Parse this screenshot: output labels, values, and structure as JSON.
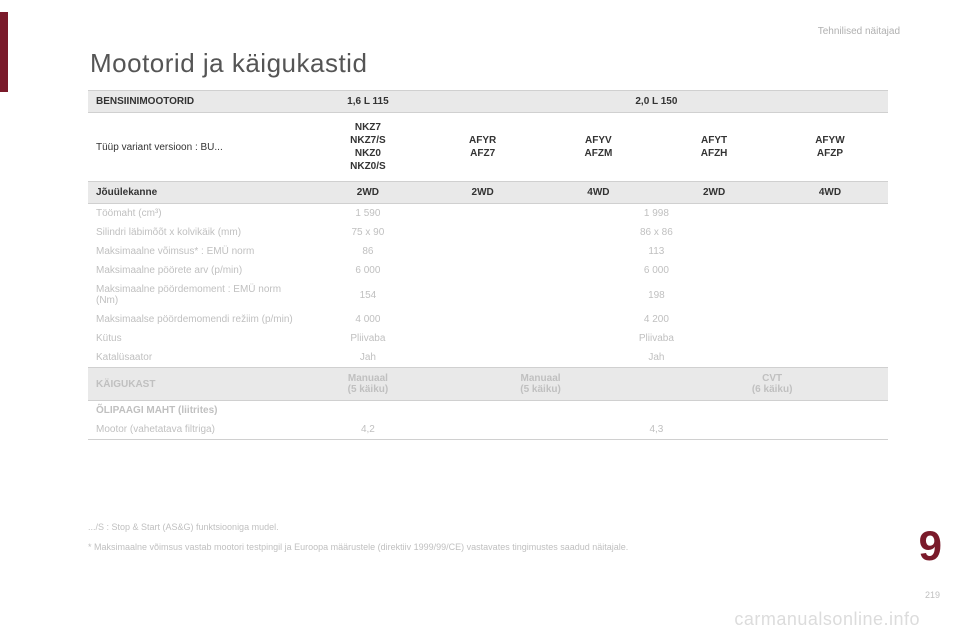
{
  "top_right": "Tehnilised näitajad",
  "title": "Mootorid ja käigukastid",
  "hdr": {
    "label": "BENSIINIMOOTORID",
    "col1": "1,6 L 115",
    "col2": "2,0 L 150"
  },
  "variant": {
    "label": "Tüüp variant versioon : BU...",
    "c1": "NKZ7\nNKZ7/S\nNKZ0\nNKZ0/S",
    "c2": "AFYR\nAFZ7",
    "c3": "AFYV\nAFZM",
    "c4": "AFYT\nAFZH",
    "c5": "AFYW\nAFZP"
  },
  "drive": {
    "label": "Jõuülekanne",
    "c1": "2WD",
    "c2": "2WD",
    "c3": "4WD",
    "c4": "2WD",
    "c5": "4WD"
  },
  "rows": [
    {
      "label": "Töömaht (cm³)",
      "c1": "1 590",
      "c2": "1 998"
    },
    {
      "label": "Silindri läbimõõt x kolvikäik (mm)",
      "c1": "75 x 90",
      "c2": "86 x 86"
    },
    {
      "label": "Maksimaalne võimsus* : EMÜ norm",
      "c1": "86",
      "c2": "113"
    },
    {
      "label": "Maksimaalne pöörete arv (p/min)",
      "c1": "6 000",
      "c2": "6 000"
    },
    {
      "label": "Maksimaalne pöördemoment : EMÜ norm (Nm)",
      "c1": "154",
      "c2": "198"
    },
    {
      "label": "Maksimaalse pöördemomendi režiim (p/min)",
      "c1": "4 000",
      "c2": "4 200"
    },
    {
      "label": "Kütus",
      "c1": "Pliivaba",
      "c2": "Pliivaba"
    },
    {
      "label": "Katalüsaator",
      "c1": "Jah",
      "c2": "Jah"
    }
  ],
  "gearbox": {
    "label": "KÄIGUKAST",
    "c1": "Manuaal\n(5 käiku)",
    "c2": "Manuaal\n(5 käiku)",
    "c3": "CVT\n(6 käiku)"
  },
  "oil": {
    "section": "ÕLIPAAGI MAHT (liitrites)",
    "label": "Mootor (vahetatava filtriga)",
    "c1": "4,2",
    "c2": "4,3"
  },
  "foot1": ".../S : Stop & Start (AS&G) funktsiooniga mudel.",
  "foot2": "* Maksimaalne võimsus vastab mootori testpingil ja Euroopa määrustele (direktiiv 1999/99/CE) vastavates tingimustes saadud näitajale.",
  "page_marker": "9",
  "page_num": "219",
  "watermark": "carmanualsonline.info"
}
